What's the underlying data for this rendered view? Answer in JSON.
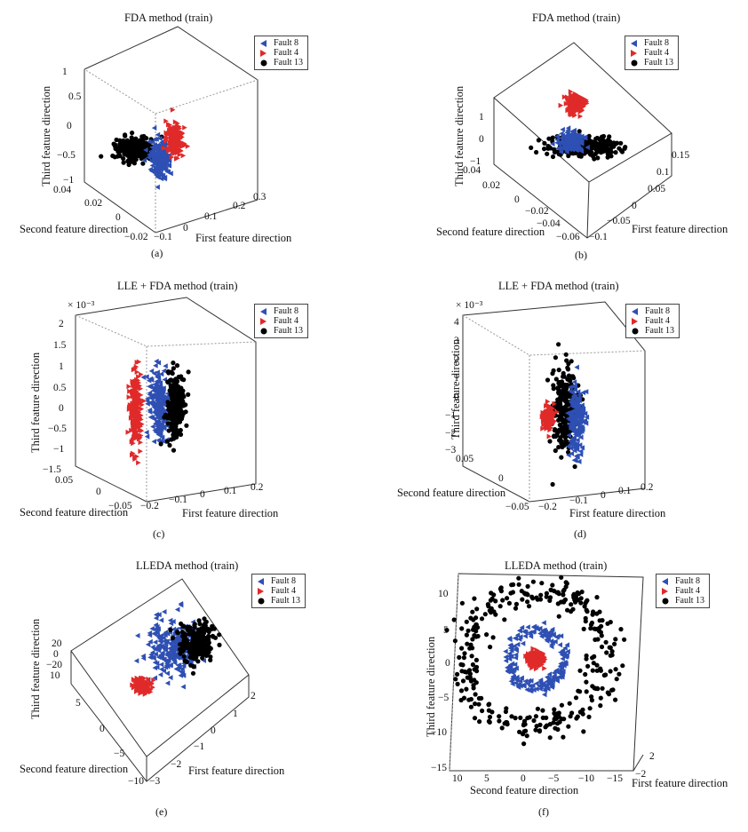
{
  "colors": {
    "fault8": "#2e4fb3",
    "fault4": "#e02a2a",
    "fault13": "#000000",
    "grid": "#9a9a9a",
    "box": "#333333"
  },
  "legend": [
    {
      "label": "Fault 8",
      "marker": "triangle-left",
      "color": "#2e4fb3"
    },
    {
      "label": "Fault 4",
      "marker": "triangle-right",
      "color": "#e02a2a"
    },
    {
      "label": "Fault 13",
      "marker": "circle",
      "color": "#000000"
    }
  ],
  "chart_data": [
    {
      "id": "a",
      "type": "scatter",
      "projection": "3d",
      "title": "FDA method (train)",
      "caption": "(a)",
      "xlabel": "First feature direction",
      "ylabel": "Second feature direction",
      "zlabel": "Third feature direction",
      "xticks": [
        "−0.1",
        "0",
        "0.1",
        "0.2",
        "0.3"
      ],
      "yticks": [
        "−0.02",
        "0",
        "0.02",
        "0.04"
      ],
      "zticks": [
        "−1",
        "−0.5",
        "0",
        "0.5",
        "1"
      ],
      "xlim": [
        -0.1,
        0.3
      ],
      "ylim": [
        -0.02,
        0.04
      ],
      "zlim": [
        -1,
        1
      ],
      "series": [
        {
          "name": "Fault 8",
          "cluster": {
            "center": [
              0.0,
              0.0,
              -0.55
            ],
            "spread": [
              0.05,
              0.005,
              0.25
            ]
          }
        },
        {
          "name": "Fault 4",
          "cluster": {
            "center": [
              0.05,
              0.02,
              -0.15
            ],
            "spread": [
              0.04,
              0.004,
              0.25
            ]
          }
        },
        {
          "name": "Fault 13",
          "cluster": {
            "center": [
              -0.05,
              0.01,
              -0.35
            ],
            "spread": [
              0.05,
              0.005,
              0.2
            ]
          }
        }
      ]
    },
    {
      "id": "b",
      "type": "scatter",
      "projection": "3d",
      "title": "FDA method (train)",
      "caption": "(b)",
      "xlabel": "First feature direction",
      "ylabel": "Second feature direction",
      "zlabel": "Third feature direction",
      "xticks": [
        "−0.1",
        "−0.05",
        "0",
        "0.05",
        "0.1",
        "0.15"
      ],
      "yticks": [
        "−0.06",
        "−0.04",
        "−0.02",
        "0",
        "0.02",
        "0.04"
      ],
      "zticks": [
        "−1",
        "0",
        "1"
      ],
      "xlim": [
        -0.1,
        0.15
      ],
      "ylim": [
        -0.06,
        0.04
      ],
      "zlim": [
        -1,
        1
      ],
      "series": [
        {
          "name": "Fault 8",
          "cluster": {
            "center": [
              0.0,
              0.0,
              0.0
            ],
            "spread": [
              0.03,
              0.01,
              0.3
            ]
          }
        },
        {
          "name": "Fault 4",
          "cluster": {
            "center": [
              0.08,
              0.0,
              1.0
            ],
            "spread": [
              0.02,
              0.008,
              0.3
            ]
          }
        },
        {
          "name": "Fault 13",
          "cluster": {
            "center": [
              0.02,
              -0.01,
              -0.3
            ],
            "spread": [
              0.05,
              0.02,
              0.3
            ]
          }
        }
      ]
    },
    {
      "id": "c",
      "type": "scatter",
      "projection": "3d",
      "title": "LLE + FDA method (train)",
      "caption": "(c)",
      "zmultiplier": "× 10⁻³",
      "xlabel": "First feature direction",
      "ylabel": "Second feature direction",
      "zlabel": "Third feature direction",
      "xticks": [
        "−0.2",
        "−0.1",
        "0",
        "0.1",
        "0.2"
      ],
      "yticks": [
        "−0.05",
        "0",
        "0.05"
      ],
      "zticks": [
        "−1.5",
        "−1",
        "−0.5",
        "0",
        "0.5",
        "1",
        "1.5",
        "2"
      ],
      "xlim": [
        -0.2,
        0.2
      ],
      "ylim": [
        -0.05,
        0.05
      ],
      "zlim": [
        -1.5,
        2
      ],
      "series": [
        {
          "name": "Fault 8",
          "cluster": {
            "center": [
              -0.14,
              0.0,
              0.1
            ],
            "spread": [
              0.02,
              0.01,
              0.6
            ]
          }
        },
        {
          "name": "Fault 4",
          "cluster": {
            "center": [
              -0.2,
              0.0,
              0.0
            ],
            "spread": [
              0.01,
              0.01,
              0.8
            ]
          }
        },
        {
          "name": "Fault 13",
          "cluster": {
            "center": [
              -0.1,
              0.0,
              0.0
            ],
            "spread": [
              0.02,
              0.01,
              0.6
            ]
          }
        }
      ]
    },
    {
      "id": "d",
      "type": "scatter",
      "projection": "3d",
      "title": "LLE + FDA method (train)",
      "caption": "(d)",
      "zmultiplier": "× 10⁻³",
      "xlabel": "First feature direction",
      "ylabel": "Second feature direction",
      "zlabel": "Third feature direction",
      "xticks": [
        "−0.2",
        "−0.1",
        "0",
        "0.1",
        "0.2"
      ],
      "yticks": [
        "−0.05",
        "0",
        "0.05"
      ],
      "zticks": [
        "−3",
        "−2",
        "−1",
        "0",
        "1",
        "2",
        "3",
        "4"
      ],
      "xlim": [
        -0.2,
        0.2
      ],
      "ylim": [
        -0.05,
        0.05
      ],
      "zlim": [
        -3,
        4
      ],
      "series": [
        {
          "name": "Fault 8",
          "cluster": {
            "center": [
              -0.08,
              0.0,
              0.0
            ],
            "spread": [
              0.015,
              0.01,
              1.2
            ]
          }
        },
        {
          "name": "Fault 4",
          "cluster": {
            "center": [
              -0.12,
              0.0,
              -0.5
            ],
            "spread": [
              0.01,
              0.01,
              0.6
            ]
          }
        },
        {
          "name": "Fault 13",
          "cluster": {
            "center": [
              -0.09,
              0.0,
              0.5
            ],
            "spread": [
              0.02,
              0.01,
              1.5
            ]
          }
        }
      ]
    },
    {
      "id": "e",
      "type": "scatter",
      "projection": "3d",
      "title": "LLEDA method (train)",
      "caption": "(e)",
      "xlabel": "First feature direction",
      "ylabel": "Second feature direction",
      "zlabel": "Third feature direction",
      "xticks": [
        "−3",
        "−2",
        "−1",
        "0",
        "1",
        "2"
      ],
      "yticks": [
        "−10",
        "−5",
        "0",
        "5",
        "10"
      ],
      "zticks": [
        "−20",
        "0",
        "20"
      ],
      "xlim": [
        -3,
        2
      ],
      "ylim": [
        -10,
        10
      ],
      "zlim": [
        -20,
        20
      ],
      "series": [
        {
          "name": "Fault 8",
          "cluster": {
            "center": [
              0.0,
              0.0,
              0.0
            ],
            "spread": [
              0.8,
              3.0,
              5.0
            ]
          }
        },
        {
          "name": "Fault 4",
          "cluster": {
            "center": [
              -2.0,
              5.0,
              0.0
            ],
            "spread": [
              0.3,
              1.0,
              2.0
            ]
          }
        },
        {
          "name": "Fault 13",
          "cluster": {
            "center": [
              0.8,
              2.0,
              5.0
            ],
            "spread": [
              0.6,
              2.5,
              4.0
            ]
          }
        }
      ]
    },
    {
      "id": "f",
      "type": "scatter",
      "projection": "3d",
      "title": "LLEDA method (train)",
      "caption": "(f)",
      "xlabel": "First feature direction",
      "ylabel": "Second feature direction",
      "zlabel": "Third feature direction",
      "xticks": [
        "−2",
        "2"
      ],
      "yticks": [
        "10",
        "5",
        "0",
        "−5",
        "−10",
        "−15"
      ],
      "zticks": [
        "−15",
        "−10",
        "−5",
        "0",
        "5",
        "10"
      ],
      "xlim": [
        -2,
        2
      ],
      "ylim": [
        -15,
        10
      ],
      "zlim": [
        -15,
        10
      ],
      "series": [
        {
          "name": "Fault 8",
          "cluster": {
            "shape": "ring",
            "center": [
              0,
              0,
              0
            ],
            "radius": 4.5
          }
        },
        {
          "name": "Fault 4",
          "cluster": {
            "shape": "blob",
            "center": [
              0,
              0,
              0
            ],
            "radius": 1.2
          }
        },
        {
          "name": "Fault 13",
          "cluster": {
            "shape": "ring",
            "center": [
              0,
              0,
              0
            ],
            "radius": 9.0
          }
        }
      ]
    }
  ]
}
